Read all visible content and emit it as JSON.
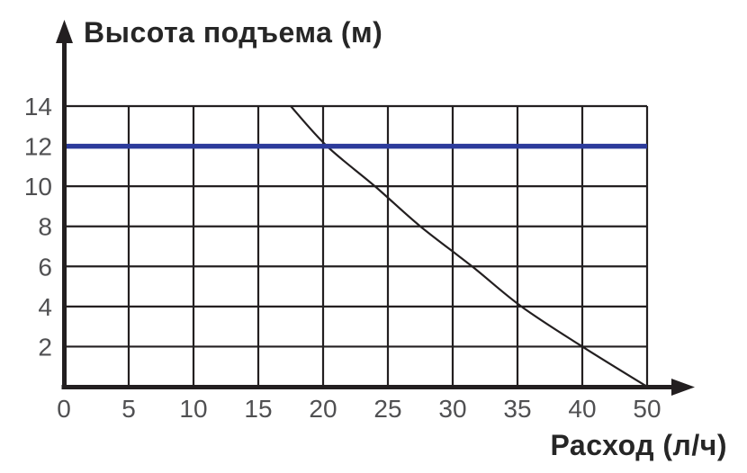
{
  "chart_data": {
    "type": "line",
    "title": "Высота подъема (м)",
    "xlabel": "Расход (л/ч)",
    "ylabel": "",
    "x_tick_labels": [
      "0",
      "5",
      "10",
      "15",
      "20",
      "25",
      "30",
      "35",
      "40",
      "50"
    ],
    "y_tick_labels": [
      "14",
      "12",
      "10",
      "8",
      "6",
      "4",
      "2"
    ],
    "y_ticks": [
      14,
      12,
      10,
      8,
      6,
      4,
      2
    ],
    "ylim": [
      0,
      14
    ],
    "x_scale_note": "gridlines evenly spaced; final gridline labeled 50 (45 not labeled)",
    "grid": true,
    "legend": "none",
    "series": [
      {
        "name": "pump-performance-curve",
        "color": "#231f20",
        "width": 2.2,
        "smooth": true,
        "points": [
          [
            17.5,
            14
          ],
          [
            20.3,
            12
          ],
          [
            24,
            10
          ],
          [
            27.5,
            8
          ],
          [
            31.5,
            6
          ],
          [
            35.3,
            4
          ],
          [
            40,
            2
          ],
          [
            50,
            0
          ]
        ]
      },
      {
        "name": "max-head-line",
        "color": "#2c3b9b",
        "width": 5.5,
        "smooth": false,
        "points": [
          [
            0,
            12
          ],
          [
            50,
            12
          ]
        ]
      }
    ],
    "colors": {
      "ink": "#231f20",
      "tick_text": "#505052",
      "label_text": "#262626",
      "accent_blue": "#2c3b9b",
      "background": "#ffffff"
    }
  }
}
